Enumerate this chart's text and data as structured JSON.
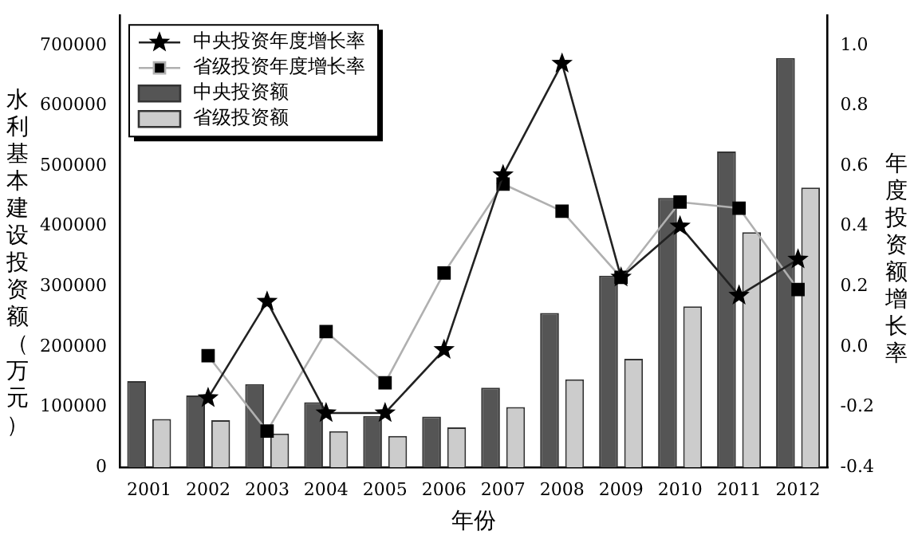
{
  "chart_data": {
    "type": "bar",
    "xlabel": "年份",
    "ylabel": "水利基本建设投资额（万元）",
    "y2label": "年度投资额增长率",
    "categories": [
      "2001",
      "2002",
      "2003",
      "2004",
      "2005",
      "2006",
      "2007",
      "2008",
      "2009",
      "2010",
      "2011",
      "2012"
    ],
    "series": [
      {
        "name": "中央投资年度增长率",
        "type": "line",
        "axis": "y2",
        "marker": "star",
        "color": "#222222",
        "values": [
          null,
          -0.17,
          0.15,
          -0.22,
          -0.22,
          -0.01,
          0.57,
          0.94,
          0.23,
          0.4,
          0.17,
          0.29
        ]
      },
      {
        "name": "省级投资年度增长率",
        "type": "line",
        "axis": "y2",
        "marker": "square",
        "color": "#b0b0b0",
        "values": [
          null,
          -0.03,
          -0.28,
          0.05,
          -0.12,
          0.245,
          0.54,
          0.45,
          0.23,
          0.48,
          0.46,
          0.19
        ]
      },
      {
        "name": "中央投资额",
        "color": "#555555",
        "values": [
          143000,
          119000,
          138000,
          108000,
          85000,
          84000,
          132000,
          256000,
          318000,
          447000,
          524000,
          679000
        ]
      },
      {
        "name": "省级投资额",
        "color": "#cccccc",
        "values": [
          80000,
          78000,
          56000,
          60000,
          52000,
          66000,
          100000,
          146000,
          180000,
          267000,
          390000,
          464000
        ]
      }
    ],
    "ylim": [
      0,
      750000
    ],
    "yticks": [
      0,
      100000,
      200000,
      300000,
      400000,
      500000,
      600000,
      700000
    ],
    "y2lim": [
      -0.4,
      1.1
    ],
    "y2ticks": [
      {
        "value": -0.4,
        "label": "-0.4"
      },
      -0.2,
      {
        "value": 0,
        "label": "0.0"
      },
      0.2,
      0.4,
      0.6,
      0.8,
      {
        "value": 1,
        "label": "1.0"
      }
    ],
    "grid": false,
    "legend": "top left"
  }
}
